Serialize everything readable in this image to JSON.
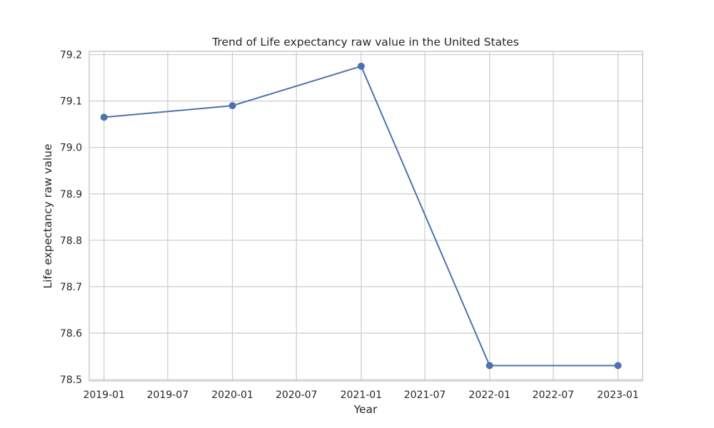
{
  "chart_data": {
    "type": "line",
    "title": "Trend of Life expectancy raw value in the United States",
    "xlabel": "Year",
    "ylabel": "Life expectancy raw value",
    "x_ticks": [
      "2019-01",
      "2019-07",
      "2020-01",
      "2020-07",
      "2021-01",
      "2021-07",
      "2022-01",
      "2022-07",
      "2023-01"
    ],
    "y_ticks": [
      "78.5",
      "78.6",
      "78.7",
      "78.8",
      "78.9",
      "79.0",
      "79.1",
      "79.2"
    ],
    "xlim": [
      "2018-11-20",
      "2023-03-12"
    ],
    "ylim": [
      78.497,
      79.207
    ],
    "grid": true,
    "series": [
      {
        "color": "#4c72b0",
        "points": [
          {
            "x": "2019-01-01",
            "y": 79.065
          },
          {
            "x": "2020-01-01",
            "y": 79.09
          },
          {
            "x": "2021-01-01",
            "y": 79.175
          },
          {
            "x": "2022-01-01",
            "y": 78.53
          },
          {
            "x": "2023-01-01",
            "y": 78.53
          }
        ]
      }
    ]
  }
}
